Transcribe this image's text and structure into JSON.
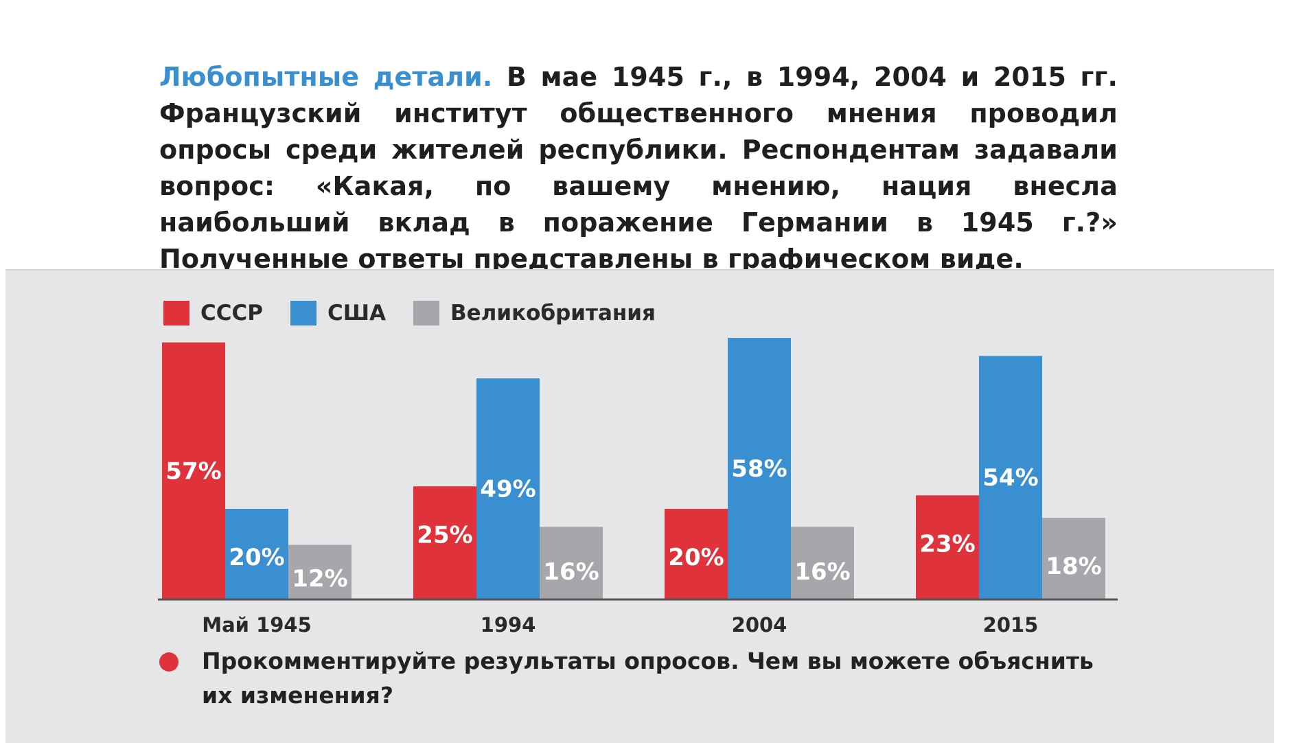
{
  "intro": {
    "lead": "Любопытные детали.",
    "text": " В мае 1945 г., в 1994, 2004 и 2015 гг. Французский институт общественного мнения проводил опросы среди жителей республики. Респондентам задавали вопрос: «Какая, по вашему мнению, нация внесла наибольший вклад в поражение Германии в 1945 г.?» Полученные ответы представлены в графическом виде."
  },
  "question": {
    "text": "Прокомментируйте результаты опросов. Чем вы можете объяснить их изменения?"
  },
  "colors": {
    "ussr": "#e0323a",
    "usa": "#3a8fd0",
    "uk": "#a7a7ab"
  },
  "chart_data": {
    "type": "bar",
    "categories": [
      "Май 1945",
      "1994",
      "2004",
      "2015"
    ],
    "series": [
      {
        "name": "СССР",
        "values": [
          57,
          25,
          20,
          23
        ],
        "color": "#e0323a"
      },
      {
        "name": "США",
        "values": [
          20,
          49,
          58,
          54
        ],
        "color": "#3a8fd0"
      },
      {
        "name": "Великобритания",
        "values": [
          12,
          16,
          16,
          18
        ],
        "color": "#a7a7ab"
      }
    ],
    "data_labels": [
      [
        "57%",
        "25%",
        "20%",
        "23%"
      ],
      [
        "20%",
        "49%",
        "58%",
        "54%"
      ],
      [
        "12%",
        "16%",
        "16%",
        "18%"
      ]
    ],
    "legend_position": "top-left",
    "grid": false
  }
}
